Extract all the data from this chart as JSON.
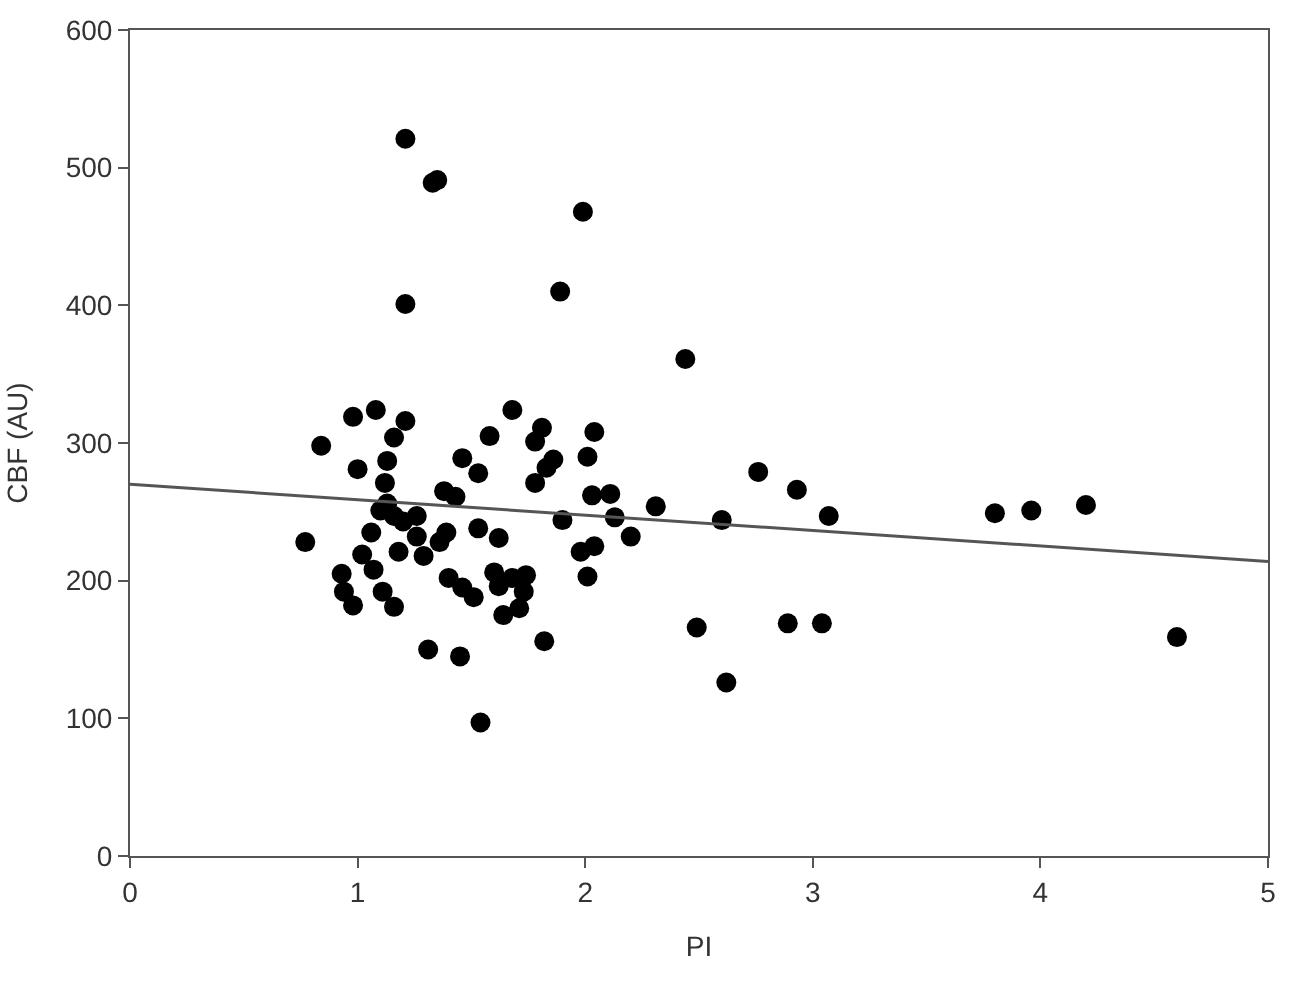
{
  "chart_data": {
    "type": "scatter",
    "xlabel": "PI",
    "ylabel": "CBF (AU)",
    "xlim": [
      0,
      5
    ],
    "ylim": [
      0,
      600
    ],
    "xticks": [
      0,
      1,
      2,
      3,
      4,
      5
    ],
    "yticks": [
      0,
      100,
      200,
      300,
      400,
      500,
      600
    ],
    "legend": false,
    "marker": "circle",
    "series": [
      {
        "color": "#000000",
        "x": [
          1.21,
          1.33,
          1.35,
          1.99,
          1.21,
          1.89,
          2.44,
          1.81,
          1.78,
          2.04,
          2.01,
          1.86,
          1.83,
          1.78,
          2.03,
          2.11,
          1.9,
          2.13,
          2.31,
          2.2,
          2.6,
          2.76,
          2.93,
          3.07,
          3.8,
          3.96,
          4.2,
          4.6,
          1.98,
          2.04,
          2.01,
          1.82,
          2.49,
          2.89,
          3.04,
          2.62,
          0.84,
          0.98,
          1.08,
          1.21,
          1.16,
          1.0,
          1.13,
          1.12,
          1.13,
          1.1,
          1.16,
          1.2,
          1.26,
          0.77,
          1.06,
          1.02,
          1.07,
          0.93,
          0.94,
          0.98,
          1.11,
          1.16,
          1.18,
          1.26,
          1.29,
          1.36,
          1.39,
          1.38,
          1.43,
          1.46,
          1.53,
          1.58,
          1.68,
          1.53,
          1.62,
          1.4,
          1.46,
          1.51,
          1.6,
          1.62,
          1.68,
          1.74,
          1.73,
          1.71,
          1.64,
          1.31,
          1.45,
          1.54
        ],
        "values": [
          521,
          489,
          491,
          468,
          401,
          410,
          361,
          311,
          301,
          308,
          290,
          288,
          282,
          271,
          262,
          263,
          244,
          246,
          254,
          232,
          244,
          279,
          266,
          247,
          249,
          251,
          255,
          159,
          221,
          225,
          203,
          156,
          166,
          169,
          169,
          126,
          298,
          319,
          324,
          316,
          304,
          281,
          287,
          271,
          256,
          251,
          247,
          243,
          247,
          228,
          235,
          219,
          208,
          205,
          192,
          182,
          192,
          181,
          221,
          232,
          218,
          228,
          235,
          265,
          261,
          289,
          278,
          305,
          324,
          238,
          231,
          202,
          195,
          188,
          206,
          196,
          202,
          204,
          192,
          180,
          175,
          150,
          145,
          97
        ]
      },
      {
        "type": "line",
        "color": "#555555",
        "x": [
          0,
          5
        ],
        "values": [
          270,
          214
        ],
        "marker": "none"
      }
    ]
  }
}
